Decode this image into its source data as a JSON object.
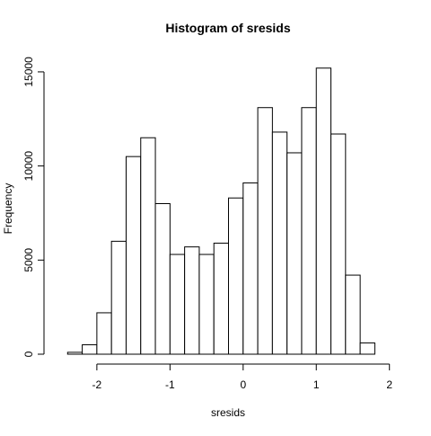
{
  "chart_data": {
    "type": "bar",
    "title": "Histogram of sresids",
    "xlabel": "sresids",
    "ylabel": "Frequency",
    "bin_edges": [
      -2.4,
      -2.2,
      -2.0,
      -1.8,
      -1.6,
      -1.4,
      -1.2,
      -1.0,
      -0.8,
      -0.6,
      -0.4,
      -0.2,
      0.0,
      0.2,
      0.4,
      0.6,
      0.8,
      1.0,
      1.2,
      1.4,
      1.6,
      1.8
    ],
    "values": [
      100,
      500,
      2200,
      6000,
      10500,
      11500,
      8000,
      5300,
      5700,
      5300,
      5900,
      8300,
      9100,
      13100,
      11800,
      10700,
      13100,
      15200,
      11700,
      4200,
      600
    ],
    "xticks": [
      -2,
      -1,
      0,
      1,
      2
    ],
    "yticks": [
      0,
      5000,
      10000,
      15000
    ],
    "xlim": [
      -2.6,
      2.2
    ],
    "ylim": [
      0,
      16000
    ],
    "grid": false,
    "legend": "none"
  }
}
